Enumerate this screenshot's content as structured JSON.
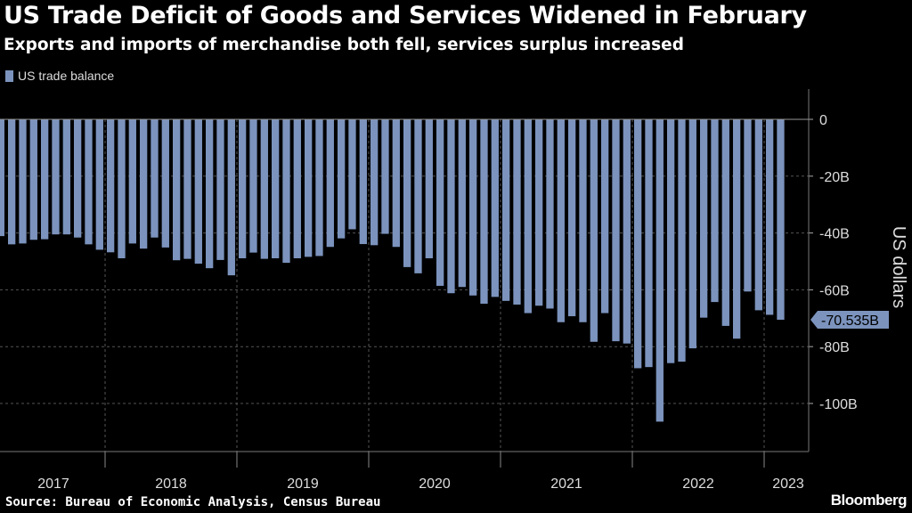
{
  "title": "US Trade Deficit of Goods and Services Widened in February",
  "subtitle": "Exports and imports of merchandise both fell, services surplus increased",
  "source": "Source: Bureau of Economic Analysis, Census Bureau",
  "logo": "Bloomberg",
  "chart_data": {
    "type": "bar",
    "title": "US Trade Deficit of Goods and Services Widened in February",
    "ylabel": "US dollars",
    "legend": {
      "entries": [
        "US trade balance"
      ],
      "placement": "top-left"
    },
    "series": [
      {
        "name": "US trade balance",
        "color": "#7b93bd",
        "start": "2017-03",
        "end": "2023-02",
        "frequency": "monthly",
        "values": [
          -41.1,
          -44.0,
          -43.7,
          -42.4,
          -42.2,
          -40.5,
          -40.5,
          -41.6,
          -44.0,
          -45.9,
          -46.8,
          -48.9,
          -43.7,
          -45.5,
          -41.6,
          -45.1,
          -49.6,
          -49.1,
          -50.8,
          -52.4,
          -49.5,
          -54.9,
          -48.9,
          -46.9,
          -49.1,
          -48.9,
          -50.5,
          -48.9,
          -48.4,
          -48.1,
          -44.9,
          -41.9,
          -38.7,
          -43.9,
          -44.3,
          -40.3,
          -44.9,
          -52.0,
          -54.2,
          -48.9,
          -58.6,
          -61.2,
          -59.0,
          -62.0,
          -64.9,
          -62.5,
          -63.9,
          -65.2,
          -68.2,
          -65.6,
          -66.6,
          -71.4,
          -69.3,
          -71.4,
          -78.3,
          -68.2,
          -78.1,
          -78.9,
          -87.6,
          -87.2,
          -106.4,
          -85.8,
          -85.3,
          -80.6,
          -69.8,
          -64.3,
          -72.7,
          -77.2,
          -60.6,
          -67.2,
          -68.8,
          -70.535
        ]
      }
    ],
    "x_tick_labels": [
      "2017",
      "2018",
      "2019",
      "2020",
      "2021",
      "2022",
      "2023"
    ],
    "y_ticks": [
      0,
      -20,
      -40,
      -60,
      -80,
      -100
    ],
    "y_tick_labels": [
      "0",
      "-20B",
      "-40B",
      "-60B",
      "-80B",
      "-100B"
    ],
    "ylim": [
      -118,
      10
    ],
    "y_axis_side": "right",
    "grid": true,
    "last_value_label": "-70.535B",
    "background": "#000000"
  }
}
